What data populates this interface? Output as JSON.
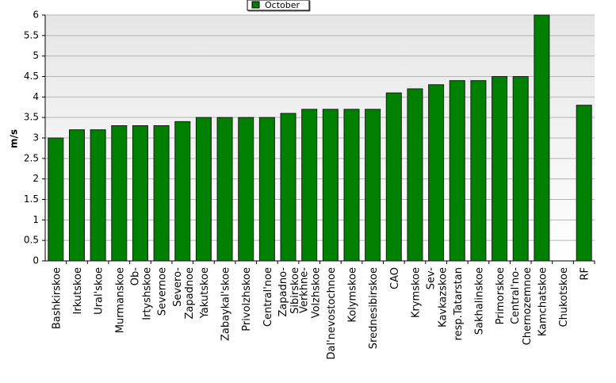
{
  "chart_data": {
    "type": "bar",
    "y_label": "m/s",
    "categories": [
      "Bashkirskoe",
      "Irkutskoe",
      "Ural'skoe",
      "Murmanskoe",
      "Ob-\nIrtyshskoe",
      "Severnoe",
      "Severo-\nZapadnoe",
      "Yakutskoe",
      "Zabaykal'skoe",
      "Privolzhskoe",
      "Central'noe",
      "Zapadno-\nSibirskoe",
      "Verkhne-\nVolzhskoe",
      "Dal'nevostochnoe",
      "Kolymskoe",
      "Srednesibirskoe",
      "CAO",
      "Krymskoe",
      "Sev-\nKavkazskoe",
      "resp.Tatarstan",
      "Sakhalinskoe",
      "Primorskoe",
      "Central'no-\nChernozemnoe",
      "Kamchatskoe",
      "Chukotskoe",
      "RF"
    ],
    "series": [
      {
        "name": "October",
        "color": "#008000",
        "values": [
          3.0,
          3.2,
          3.2,
          3.3,
          3.3,
          3.3,
          3.4,
          3.5,
          3.5,
          3.5,
          3.5,
          3.6,
          3.7,
          3.7,
          3.7,
          3.7,
          4.1,
          4.2,
          4.3,
          4.4,
          4.4,
          4.5,
          4.5,
          6.0,
          null,
          3.8
        ]
      }
    ],
    "ylim": [
      0,
      6
    ],
    "yticks": [
      0,
      0.5,
      1,
      1.5,
      2,
      2.5,
      3,
      3.5,
      4,
      4.5,
      5,
      5.5,
      6
    ],
    "grid": true
  }
}
